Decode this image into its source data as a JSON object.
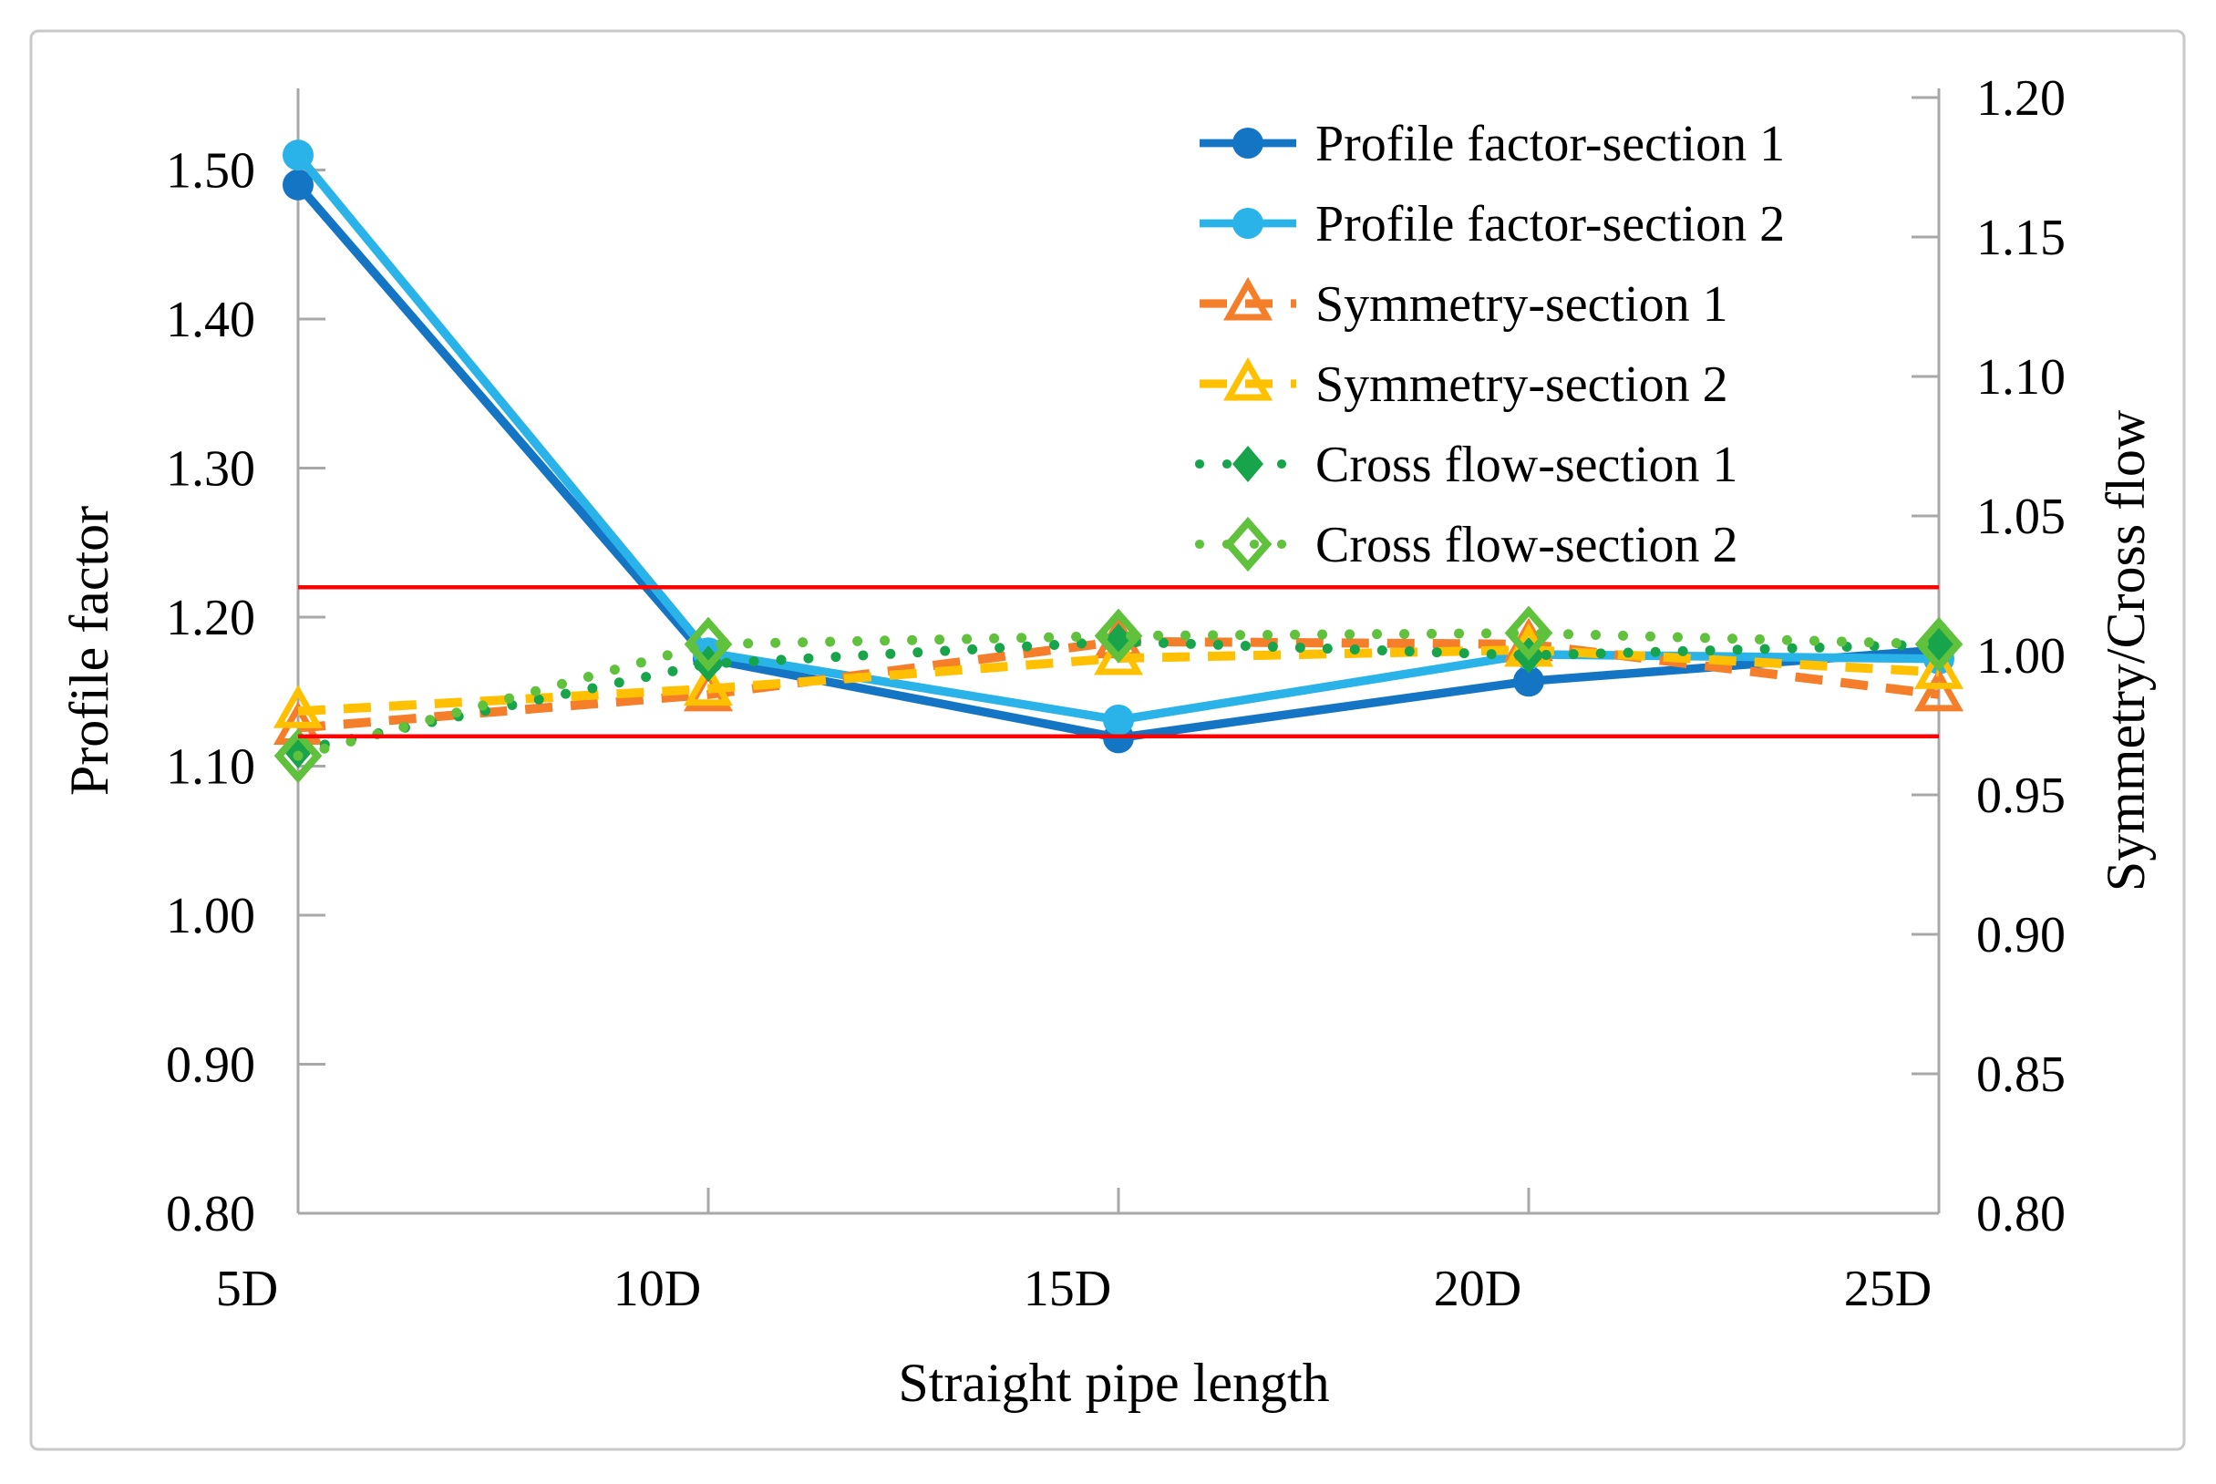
{
  "figure": {
    "kind": "dual-axis line chart",
    "border_color": "#C9C9C9",
    "background": "#FFFFFF"
  },
  "chart_data": {
    "type": "line",
    "categories": [
      "5D",
      "10D",
      "15D",
      "20D",
      "25D"
    ],
    "xlabel": "Straight pipe length",
    "grid": false,
    "legend_position": "top-right",
    "axes": {
      "left": {
        "label": "Profile factor",
        "min": 0.8,
        "max": 1.5,
        "step": 0.1
      },
      "right": {
        "label": "Symmetry/Cross flow",
        "min": 0.8,
        "max": 1.2,
        "step": 0.05
      }
    },
    "series": [
      {
        "name": "Profile factor-section 1",
        "axis": "left",
        "color": "#1575C5",
        "line": "solid",
        "marker": "circle-filled",
        "values": [
          1.49,
          1.172,
          1.119,
          1.157,
          1.178
        ]
      },
      {
        "name": "Profile factor-section 2",
        "axis": "left",
        "color": "#29B3E9",
        "line": "solid",
        "marker": "circle-filled",
        "values": [
          1.51,
          1.176,
          1.131,
          1.175,
          1.172
        ]
      },
      {
        "name": "Symmetry-section 1",
        "axis": "right",
        "color": "#F57E2A",
        "line": "dashed",
        "marker": "triangle-open",
        "values": [
          0.974,
          0.986,
          1.005,
          1.004,
          0.986
        ]
      },
      {
        "name": "Symmetry-section 2",
        "axis": "right",
        "color": "#FFC000",
        "line": "dashed",
        "marker": "triangle-open",
        "values": [
          0.98,
          0.988,
          0.999,
          1.002,
          0.994
        ]
      },
      {
        "name": "Cross flow-section 1",
        "axis": "right",
        "color": "#17A44B",
        "line": "dotted",
        "marker": "diamond-filled",
        "values": [
          0.966,
          0.997,
          1.005,
          1.0,
          1.004
        ]
      },
      {
        "name": "Cross flow-section 2",
        "axis": "right",
        "color": "#5FC13C",
        "line": "dotted",
        "marker": "diamond-open",
        "values": [
          0.964,
          1.004,
          1.007,
          1.008,
          1.004
        ]
      }
    ],
    "reference_lines": [
      {
        "name": "upper-limit-line",
        "axis": "left",
        "value": 1.22,
        "color": "#FF0000"
      },
      {
        "name": "lower-limit-line",
        "axis": "left",
        "value": 1.12,
        "color": "#FF0000"
      }
    ]
  }
}
